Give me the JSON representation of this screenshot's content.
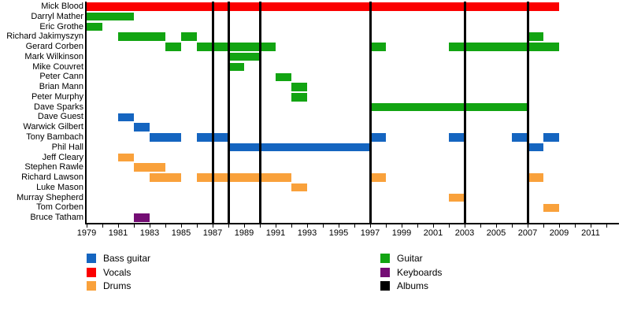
{
  "chart_data": {
    "type": "bar",
    "subtype": "gantt-membership-timeline",
    "title": "",
    "xlabel": "",
    "ylabel": "",
    "grid": false,
    "legend_position": "bottom-two-columns",
    "x_axis": {
      "min_year": 1979,
      "max_year": 2012,
      "tick_step_years": 1,
      "label_step_years": 2,
      "tick_labels": [
        "1979",
        "1981",
        "1983",
        "1985",
        "1987",
        "1989",
        "1991",
        "1993",
        "1995",
        "1997",
        "1999",
        "2001",
        "2003",
        "2005",
        "2007",
        "2009",
        "2011"
      ]
    },
    "colors": {
      "bass_guitar": "#1565c0",
      "vocals": "#fb0000",
      "drums": "#f9a13b",
      "guitar": "#12a412",
      "keyboards": "#740d74",
      "albums": "#000000"
    },
    "members": [
      {
        "name": "Mick Blood",
        "role": "Vocals",
        "segments": [
          [
            1979,
            2009
          ]
        ]
      },
      {
        "name": "Darryl Mather",
        "role": "Guitar",
        "segments": [
          [
            1979,
            1982
          ]
        ]
      },
      {
        "name": "Eric Grothe",
        "role": "Guitar",
        "segments": [
          [
            1979,
            1980
          ]
        ]
      },
      {
        "name": "Richard Jakimyszyn",
        "role": "Guitar",
        "segments": [
          [
            1981,
            1984
          ],
          [
            1985,
            1986
          ],
          [
            2007,
            2008
          ]
        ]
      },
      {
        "name": "Gerard Corben",
        "role": "Guitar",
        "segments": [
          [
            1984,
            1985
          ],
          [
            1986,
            1991
          ],
          [
            1997,
            1998
          ],
          [
            2002,
            2009
          ]
        ]
      },
      {
        "name": "Mark Wilkinson",
        "role": "Guitar",
        "segments": [
          [
            1988,
            1990
          ]
        ]
      },
      {
        "name": "Mike Couvret",
        "role": "Guitar",
        "segments": [
          [
            1988,
            1989
          ]
        ]
      },
      {
        "name": "Peter Cann",
        "role": "Guitar",
        "segments": [
          [
            1991,
            1992
          ]
        ]
      },
      {
        "name": "Brian Mann",
        "role": "Guitar",
        "segments": [
          [
            1992,
            1993
          ]
        ]
      },
      {
        "name": "Peter Murphy",
        "role": "Guitar",
        "segments": [
          [
            1992,
            1993
          ]
        ]
      },
      {
        "name": "Dave Sparks",
        "role": "Guitar",
        "segments": [
          [
            1997,
            2007
          ]
        ]
      },
      {
        "name": "Dave Guest",
        "role": "Bass guitar",
        "segments": [
          [
            1981,
            1982
          ]
        ]
      },
      {
        "name": "Warwick Gilbert",
        "role": "Bass guitar",
        "segments": [
          [
            1982,
            1983
          ]
        ]
      },
      {
        "name": "Tony Bambach",
        "role": "Bass guitar",
        "segments": [
          [
            1983,
            1985
          ],
          [
            1986,
            1988
          ],
          [
            1997,
            1998
          ],
          [
            2002,
            2003
          ],
          [
            2006,
            2007
          ],
          [
            2008,
            2009
          ]
        ]
      },
      {
        "name": "Phil Hall",
        "role": "Bass guitar",
        "segments": [
          [
            1988,
            1997
          ],
          [
            2007,
            2008
          ]
        ]
      },
      {
        "name": "Jeff Cleary",
        "role": "Drums",
        "segments": [
          [
            1981,
            1982
          ]
        ]
      },
      {
        "name": "Stephen Rawle",
        "role": "Drums",
        "segments": [
          [
            1982,
            1984
          ]
        ]
      },
      {
        "name": "Richard Lawson",
        "role": "Drums",
        "segments": [
          [
            1983,
            1985
          ],
          [
            1986,
            1992
          ],
          [
            1997,
            1998
          ],
          [
            2007,
            2008
          ]
        ]
      },
      {
        "name": "Luke Mason",
        "role": "Drums",
        "segments": [
          [
            1992,
            1993
          ]
        ]
      },
      {
        "name": "Murray Shepherd",
        "role": "Drums",
        "segments": [
          [
            2002,
            2003
          ]
        ]
      },
      {
        "name": "Tom Corben",
        "role": "Drums",
        "segments": [
          [
            2008,
            2009
          ]
        ]
      },
      {
        "name": "Bruce Tatham",
        "role": "Keyboards",
        "segments": [
          [
            1982,
            1983
          ]
        ]
      }
    ],
    "album_line_years": [
      1987,
      1988,
      1990,
      1997,
      2003,
      2007
    ],
    "legend": {
      "column1": [
        {
          "label": "Bass guitar",
          "color": "#1565c0"
        },
        {
          "label": "Vocals",
          "color": "#fb0000"
        },
        {
          "label": "Drums",
          "color": "#f9a13b"
        }
      ],
      "column2": [
        {
          "label": "Guitar",
          "color": "#12a412"
        },
        {
          "label": "Keyboards",
          "color": "#740d74"
        },
        {
          "label": "Albums",
          "color": "#000000"
        }
      ]
    }
  }
}
